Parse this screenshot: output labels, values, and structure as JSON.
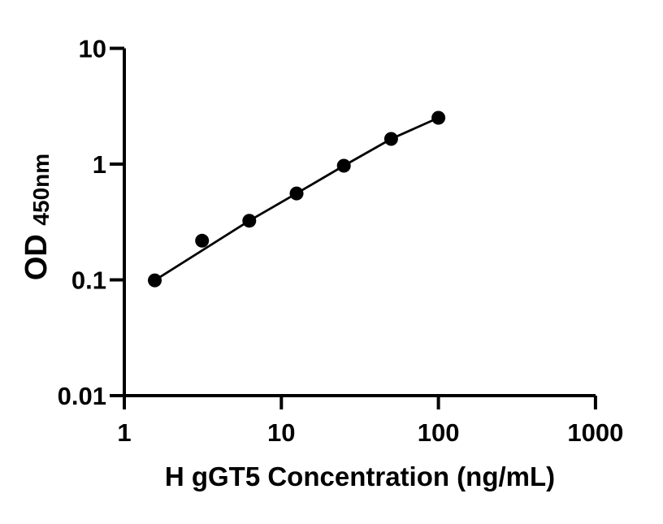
{
  "chart_data": {
    "type": "scatter",
    "title": "",
    "xlabel": "H gGT5 Concentration (ng/mL)",
    "ylabel": "OD450nm",
    "ylabel_main": "OD",
    "ylabel_sub": "450nm",
    "x_scale": "log10",
    "y_scale": "log10",
    "xlim": [
      1,
      1000
    ],
    "ylim": [
      0.01,
      10
    ],
    "x_ticks": [
      1,
      10,
      100,
      1000
    ],
    "x_tick_labels": [
      "1",
      "10",
      "100",
      "1000"
    ],
    "y_ticks": [
      10,
      1,
      0.1,
      0.01
    ],
    "y_tick_labels": [
      "10",
      "1",
      "0.1",
      "0.01"
    ],
    "grid": false,
    "legend": false,
    "background_color": "#ffffff",
    "axis_color": "#000000",
    "series": [
      {
        "name": "standard-curve-points",
        "marker": "circle",
        "marker_color": "#000000",
        "x": [
          1.563,
          3.125,
          6.25,
          12.5,
          25,
          50,
          100
        ],
        "y": [
          0.099,
          0.218,
          0.324,
          0.558,
          0.968,
          1.65,
          2.51
        ]
      }
    ],
    "fit_line": {
      "name": "fitted-curve",
      "line_color": "#000000",
      "x": [
        1.563,
        6.25,
        12.5,
        25,
        50,
        100
      ],
      "y": [
        0.099,
        0.324,
        0.558,
        0.968,
        1.65,
        2.51
      ]
    }
  }
}
